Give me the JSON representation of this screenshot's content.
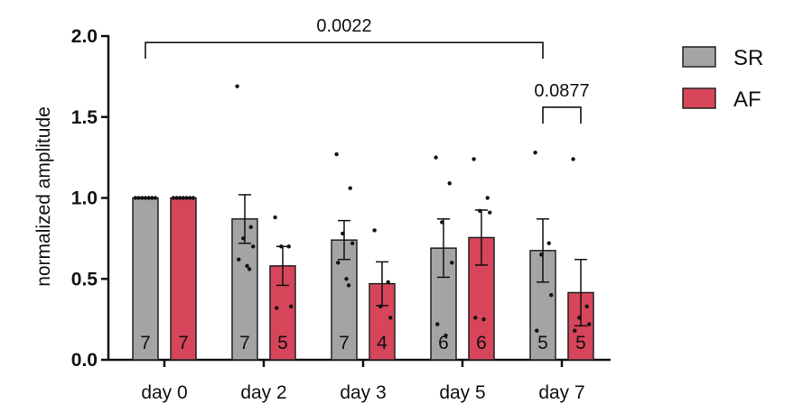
{
  "chart_data": {
    "type": "bar",
    "ylabel": "normalized amplitude",
    "xlabel": "",
    "ylim": [
      0,
      2.0
    ],
    "yticks": [
      "0.0",
      "0.5",
      "1.0",
      "1.5",
      "2.0"
    ],
    "categories": [
      "day 0",
      "day 2",
      "day 3",
      "day 5",
      "day 7"
    ],
    "legend_position": "top-right",
    "grid": false,
    "series": [
      {
        "name": "SR",
        "color": "#a4a4a7",
        "values": [
          1.0,
          0.87,
          0.74,
          0.69,
          0.675
        ],
        "sem": [
          0.0,
          0.15,
          0.12,
          0.18,
          0.195
        ],
        "n": [
          "7",
          "7",
          "7",
          "6",
          "5"
        ],
        "points": [
          [
            1.0,
            1.0,
            1.0,
            1.0,
            1.0,
            1.0,
            1.0
          ],
          [
            1.69,
            0.82,
            0.75,
            0.7,
            0.62,
            0.58,
            0.56
          ],
          [
            1.27,
            1.06,
            0.78,
            0.72,
            0.6,
            0.5,
            0.46
          ],
          [
            1.25,
            1.09,
            0.85,
            0.6,
            0.22,
            0.15
          ],
          [
            1.28,
            0.72,
            0.65,
            0.4,
            0.18
          ]
        ]
      },
      {
        "name": "AF",
        "color": "#d6455a",
        "values": [
          1.0,
          0.58,
          0.47,
          0.755,
          0.415
        ],
        "sem": [
          0.0,
          0.12,
          0.135,
          0.17,
          0.205
        ],
        "n": [
          "7",
          "5",
          "4",
          "6",
          "5"
        ],
        "points": [
          [
            1.0,
            1.0,
            1.0,
            1.0,
            1.0,
            1.0,
            1.0
          ],
          [
            0.88,
            0.7,
            0.7,
            0.33,
            0.32
          ],
          [
            0.8,
            0.48,
            0.33,
            0.26
          ],
          [
            1.24,
            1.0,
            0.92,
            0.91,
            0.26,
            0.25
          ],
          [
            1.24,
            0.33,
            0.26,
            0.22,
            0.18
          ]
        ]
      }
    ],
    "annotations": [
      {
        "label": "0.0022",
        "from": [
          "day 0",
          "SR"
        ],
        "to": [
          "day 7",
          "SR"
        ],
        "level": 1.96
      },
      {
        "label": "0.0877",
        "from": [
          "day 7",
          "SR"
        ],
        "to": [
          "day 7",
          "AF"
        ],
        "level": 1.56
      }
    ]
  }
}
